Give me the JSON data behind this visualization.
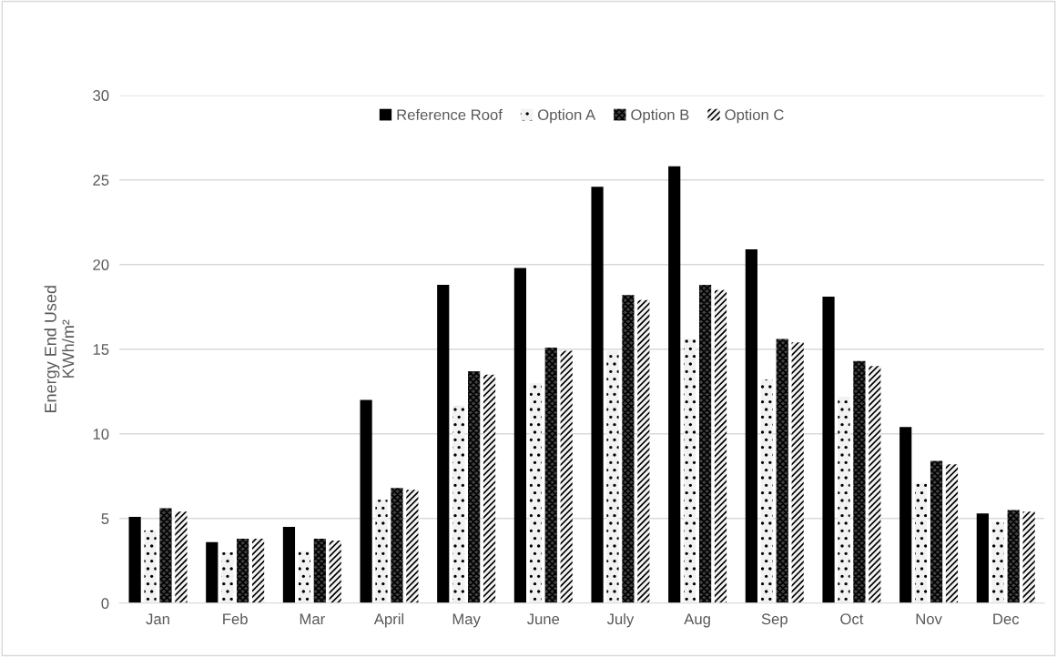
{
  "chart_data": {
    "type": "bar",
    "ylabel": "Energy End Used\nKWh/m²",
    "categories": [
      "Jan",
      "Feb",
      "Mar",
      "April",
      "May",
      "June",
      "July",
      "Aug",
      "Sep",
      "Oct",
      "Nov",
      "Dec"
    ],
    "series": [
      {
        "name": "Reference Roof",
        "color": "#000000",
        "values": [
          5.1,
          3.6,
          4.5,
          12.0,
          18.8,
          19.8,
          24.6,
          25.8,
          20.9,
          18.1,
          10.4,
          5.3
        ]
      },
      {
        "name": "Option A",
        "color": "#f2f2f2",
        "values": [
          4.3,
          3.0,
          3.1,
          6.1,
          11.7,
          13.0,
          14.9,
          15.6,
          13.2,
          12.2,
          7.1,
          4.8
        ]
      },
      {
        "name": "Option B",
        "color": "#404040",
        "values": [
          5.6,
          3.8,
          3.8,
          6.8,
          13.7,
          15.1,
          18.2,
          18.8,
          15.6,
          14.3,
          8.4,
          5.5
        ]
      },
      {
        "name": "Option C",
        "color": "#f2f2f2",
        "values": [
          5.4,
          3.8,
          3.7,
          6.7,
          13.5,
          14.9,
          17.9,
          18.5,
          15.4,
          14.0,
          8.2,
          5.4
        ]
      }
    ],
    "ylim": [
      0,
      30
    ],
    "yticks": [
      0,
      5,
      10,
      15,
      20,
      25,
      30
    ],
    "grid": "y",
    "legend": "top"
  }
}
